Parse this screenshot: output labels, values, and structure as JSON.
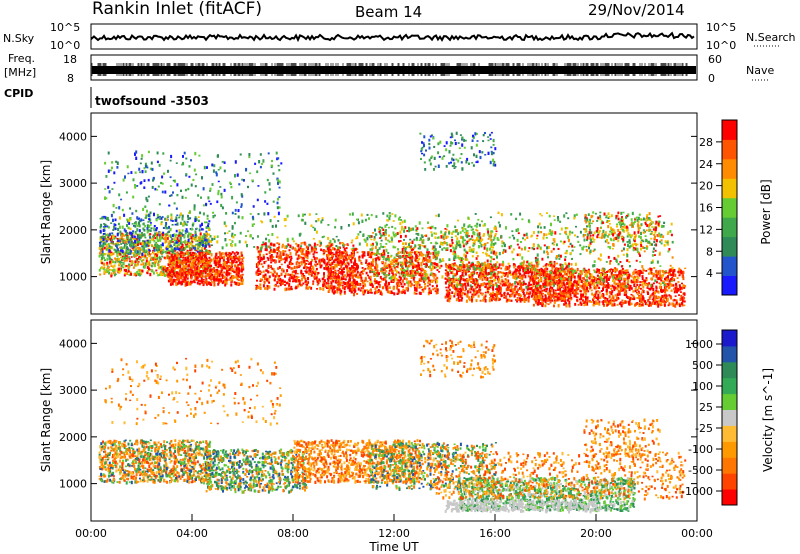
{
  "header": {
    "site": "Rankin Inlet (fitACF)",
    "beam": "Beam 14",
    "date": "29/Nov/2014"
  },
  "summary": {
    "nsky_label": "N.Sky",
    "nsky_ticks": [
      "10^5",
      "10^0"
    ],
    "nsearch_label": "N.Search",
    "nsearch_ticks": [
      "10^5",
      "10^0"
    ],
    "freq_label_1": "Freq.",
    "freq_label_2": "[MHz]",
    "freq_ticks": [
      "18",
      "8"
    ],
    "nave_label": "Nave",
    "nave_ticks": [
      "60",
      "0"
    ],
    "cpid_label": "CPID",
    "cpid_value": "twofsound -3503"
  },
  "chart_data": [
    {
      "type": "heatmap",
      "title": "",
      "xlabel": "",
      "ylabel": "Slant Range [km]",
      "xlim": [
        0,
        24
      ],
      "ylim": [
        200,
        4500
      ],
      "y_ticks": [
        1000,
        2000,
        3000,
        4000
      ],
      "colorbar_label": "Power [dB]",
      "colorbar_ticks": [
        4,
        8,
        12,
        16,
        20,
        24,
        28
      ],
      "colorscale": [
        "#1a1aff",
        "#2255cc",
        "#2e8b57",
        "#3fa84a",
        "#66cc33",
        "#f2c200",
        "#ff8c00",
        "#ff5500",
        "#ff0000"
      ],
      "colorbar_range": [
        0,
        32
      ]
    },
    {
      "type": "heatmap",
      "title": "",
      "xlabel": "Time UT",
      "ylabel": "Slant Range [km]",
      "xlim": [
        0,
        24
      ],
      "ylim": [
        200,
        4500
      ],
      "y_ticks": [
        1000,
        2000,
        3000,
        4000
      ],
      "x_ticks": [
        "00:00",
        "04:00",
        "08:00",
        "12:00",
        "16:00",
        "20:00",
        "00:00"
      ],
      "colorbar_label": "Velocity [m s^-1]",
      "colorbar_ticks": [
        "1000",
        "500",
        "100",
        "25",
        "-25",
        "-100",
        "-500",
        "-1000"
      ],
      "colorscale": [
        "#ff0000",
        "#ff4400",
        "#ff7700",
        "#ff9900",
        "#ffbb33",
        "#c8c8c8",
        "#66cc33",
        "#33aa55",
        "#2e8b57",
        "#2255aa",
        "#1a1acc"
      ]
    }
  ]
}
